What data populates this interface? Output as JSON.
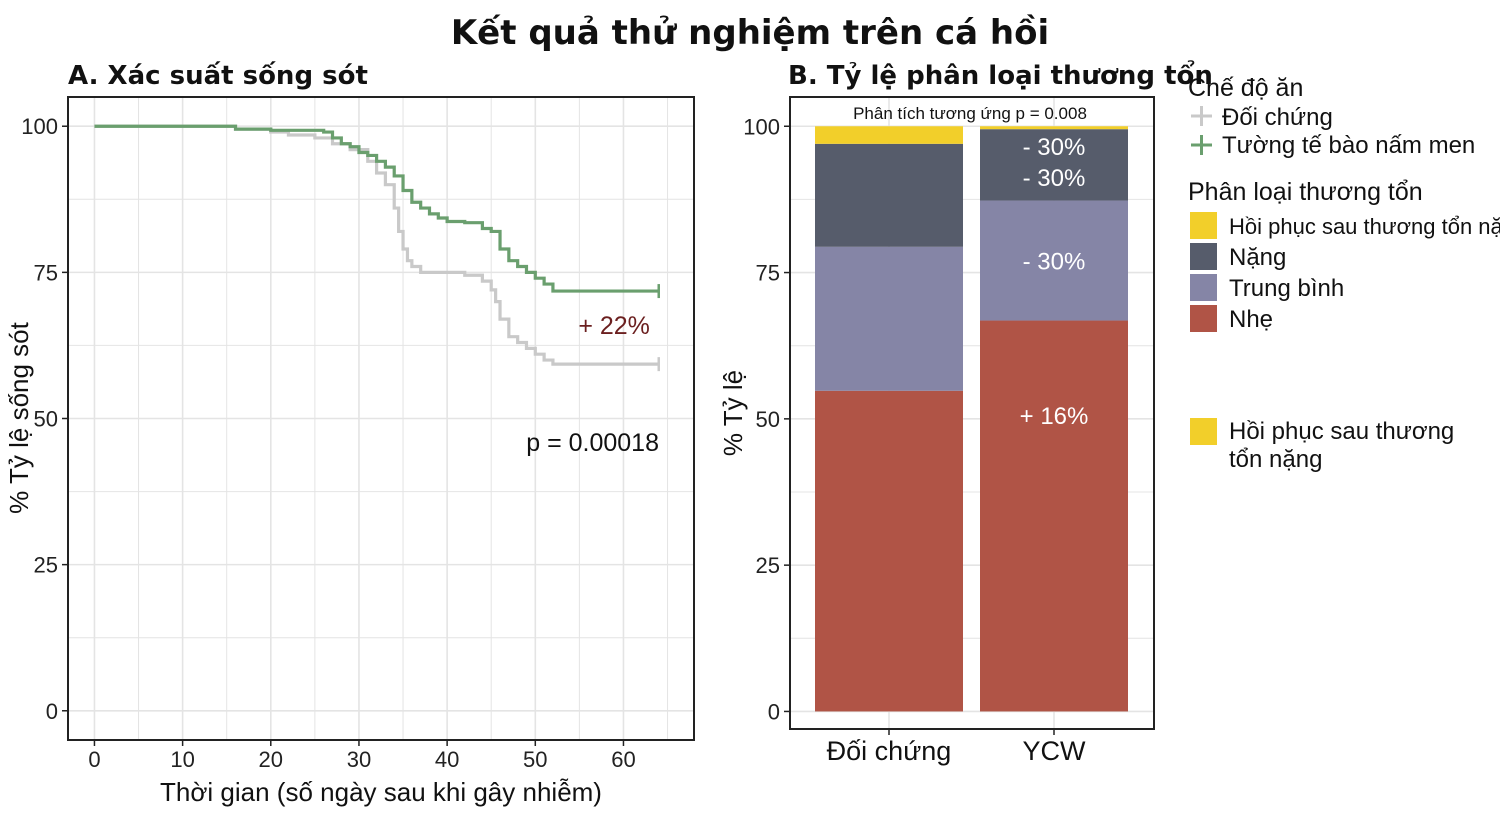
{
  "title": "Kết quả thử nghiệm trên cá hồi",
  "colors": {
    "control": "#c9c9c9",
    "ycw": "#6a9f6e",
    "recovery": "#f2cf2a",
    "severe": "#565c6b",
    "moderate": "#8585a6",
    "mild": "#b05446",
    "grid": "#e4e4e4",
    "annotation_dark": "#6b1f1f"
  },
  "chart_data": [
    {
      "type": "line",
      "title": "A. Xác suất sống sót",
      "xlabel": "Thời gian (số ngày sau khi gây nhiễm)",
      "ylabel": "% Tỷ lệ sống sót",
      "xlim": [
        -3,
        68
      ],
      "ylim": [
        -5,
        105
      ],
      "xticks": [
        0,
        10,
        20,
        30,
        40,
        50,
        60
      ],
      "yticks": [
        0,
        25,
        50,
        75,
        100
      ],
      "grid": true,
      "series": [
        {
          "name": "Đối chứng",
          "color_key": "control",
          "points": [
            [
              0,
              100
            ],
            [
              15,
              100
            ],
            [
              16,
              99.5
            ],
            [
              20,
              99
            ],
            [
              22,
              98.5
            ],
            [
              25,
              98
            ],
            [
              27,
              97
            ],
            [
              29,
              96
            ],
            [
              31,
              94
            ],
            [
              32,
              92
            ],
            [
              33,
              90
            ],
            [
              34,
              86
            ],
            [
              34.5,
              82
            ],
            [
              35,
              79
            ],
            [
              35.5,
              77
            ],
            [
              36,
              76
            ],
            [
              37,
              75
            ],
            [
              40,
              75
            ],
            [
              42,
              74.5
            ],
            [
              44,
              73.5
            ],
            [
              45,
              72
            ],
            [
              45.5,
              70
            ],
            [
              46,
              67
            ],
            [
              47,
              64
            ],
            [
              48,
              63
            ],
            [
              49,
              62
            ],
            [
              50,
              61
            ],
            [
              51,
              60
            ],
            [
              52,
              59.3
            ],
            [
              64,
              59.3
            ]
          ]
        },
        {
          "name": "Tường tế bào nấm men",
          "color_key": "ycw",
          "points": [
            [
              0,
              100
            ],
            [
              15,
              100
            ],
            [
              16,
              99.5
            ],
            [
              20,
              99.3
            ],
            [
              26,
              99
            ],
            [
              27,
              98
            ],
            [
              28,
              97
            ],
            [
              29,
              96.5
            ],
            [
              30,
              95.5
            ],
            [
              31,
              95
            ],
            [
              32,
              94
            ],
            [
              33,
              93
            ],
            [
              34,
              91.5
            ],
            [
              35,
              89
            ],
            [
              36,
              87
            ],
            [
              37,
              86
            ],
            [
              38,
              85
            ],
            [
              39,
              84.3
            ],
            [
              40,
              83.7
            ],
            [
              42,
              83.5
            ],
            [
              44,
              82.5
            ],
            [
              45,
              82
            ],
            [
              46,
              79
            ],
            [
              47,
              77
            ],
            [
              48,
              76
            ],
            [
              49,
              75
            ],
            [
              50,
              74
            ],
            [
              51,
              73
            ],
            [
              52,
              71.8
            ],
            [
              64,
              71.8
            ]
          ]
        }
      ],
      "annotations": [
        {
          "text": "+ 22%",
          "x": 63,
          "y": 66
        },
        {
          "text": "p = 0.00018",
          "x": 56.5,
          "y": 46
        }
      ]
    },
    {
      "type": "bar",
      "stacked": true,
      "title": "B. Tỷ lệ phân loại thương tổn",
      "xlabel": "",
      "ylabel": "% Tỷ lệ",
      "ylim": [
        -3,
        105
      ],
      "yticks": [
        0,
        25,
        50,
        75,
        100
      ],
      "categories": [
        "Đối chứng",
        "YCW"
      ],
      "series": [
        {
          "name": "Nhẹ",
          "color_key": "mild",
          "values": [
            54.8,
            66.8
          ]
        },
        {
          "name": "Trung bình",
          "color_key": "moderate",
          "values": [
            24.6,
            20.5
          ]
        },
        {
          "name": "Nặng",
          "color_key": "severe",
          "values": [
            17.6,
            12.2
          ]
        },
        {
          "name": "Hồi phục sau thương tổn nặng",
          "color_key": "recovery",
          "values": [
            3.0,
            0.5
          ]
        }
      ],
      "header_note": "Phân tích tương ứng p = 0.008",
      "annotations": [
        {
          "text": "- 30%",
          "category": 1,
          "y": 96.6
        },
        {
          "text": "- 30%",
          "category": 1,
          "y": 91.3
        },
        {
          "text": "- 30%",
          "category": 1,
          "y": 77.1
        },
        {
          "text": "+ 16%",
          "category": 1,
          "y": 50.7
        }
      ]
    }
  ],
  "legend": {
    "diet_title": "Chế độ ăn",
    "diet_items": [
      {
        "label": "Đối chứng",
        "color_key": "control"
      },
      {
        "label": "Tường tế bào nấm men",
        "color_key": "ycw"
      }
    ],
    "lesion_title": "Phân loại thương tổn",
    "lesion_items": [
      {
        "label": "Hồi phục sau thương tổn nặng",
        "color_key": "recovery"
      },
      {
        "label": "Nặng",
        "color_key": "severe"
      },
      {
        "label": "Trung bình",
        "color_key": "moderate"
      },
      {
        "label": "Nhẹ",
        "color_key": "mild"
      }
    ],
    "extra_item": {
      "line1": "Hồi phục sau thương",
      "line2": "tổn nặng",
      "color_key": "recovery"
    }
  }
}
